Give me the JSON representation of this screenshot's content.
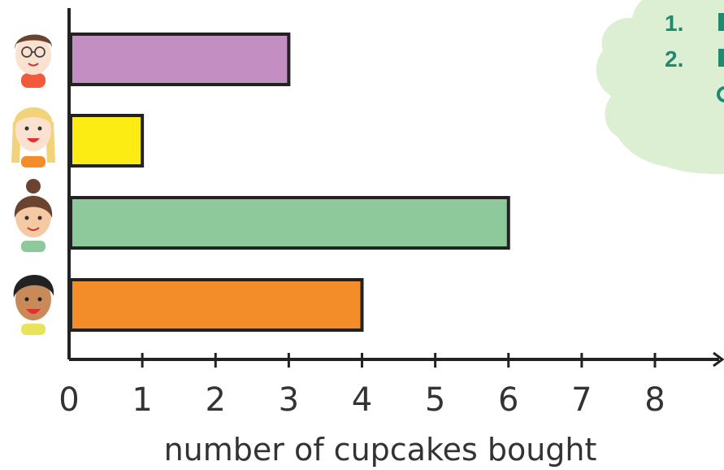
{
  "chart_data": {
    "type": "bar",
    "orientation": "horizontal",
    "categories": [
      "child-glasses",
      "child-blonde-plaits",
      "child-hair-bun",
      "child-dark-hair"
    ],
    "values": [
      3,
      1,
      6,
      4
    ],
    "bar_colors": [
      "#c38fc2",
      "#fdeb14",
      "#8ec99c",
      "#f28d2a"
    ],
    "x_ticks": [
      "0",
      "1",
      "2",
      "3",
      "4",
      "5",
      "6",
      "7",
      "8"
    ],
    "xlim": [
      0,
      8
    ],
    "xlabel": "number of cupcakes bought",
    "title": "",
    "grid": false
  },
  "cloud": {
    "color": "#dcefd3",
    "items": [
      "1.",
      "2."
    ]
  },
  "icons": [
    "child-glasses-icon",
    "child-blonde-plaits-icon",
    "child-hair-bun-icon",
    "child-dark-hair-icon"
  ]
}
